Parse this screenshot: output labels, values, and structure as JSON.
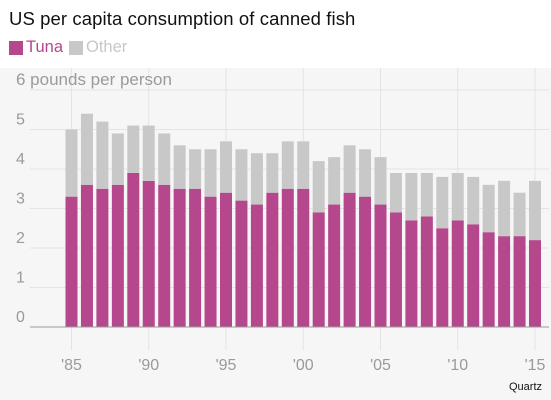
{
  "title": "US per capita consumption of canned fish",
  "source": "Quartz",
  "colors": {
    "tuna": "#b5478c",
    "other": "#c8c8c8",
    "axis_text": "#9a9a9a",
    "grid": "#e4e4e4"
  },
  "chart_data": {
    "type": "bar",
    "stacked": true,
    "title": "US per capita consumption of canned fish",
    "ylabel": "pounds per person",
    "ylim": [
      0,
      6.5
    ],
    "yticks": [
      0,
      1,
      2,
      3,
      4,
      5,
      6
    ],
    "ytick_labels": [
      "0",
      "1",
      "2",
      "3",
      "4",
      "5",
      "6 pounds per person"
    ],
    "xticks": [
      1985,
      1990,
      1995,
      2000,
      2005,
      2010,
      2015
    ],
    "xtick_labels": [
      "'85",
      "'90",
      "'95",
      "'00",
      "'05",
      "'10",
      "'15"
    ],
    "legend": "top-left",
    "grid": true,
    "years": [
      1985,
      1986,
      1987,
      1988,
      1989,
      1990,
      1991,
      1992,
      1993,
      1994,
      1995,
      1996,
      1997,
      1998,
      1999,
      2000,
      2001,
      2002,
      2003,
      2004,
      2005,
      2006,
      2007,
      2008,
      2009,
      2010,
      2011,
      2012,
      2013,
      2014,
      2015
    ],
    "series": [
      {
        "name": "Tuna",
        "values": [
          3.3,
          3.6,
          3.5,
          3.6,
          3.9,
          3.7,
          3.6,
          3.5,
          3.5,
          3.3,
          3.4,
          3.2,
          3.1,
          3.4,
          3.5,
          3.5,
          2.9,
          3.1,
          3.4,
          3.3,
          3.1,
          2.9,
          2.7,
          2.8,
          2.5,
          2.7,
          2.6,
          2.4,
          2.3,
          2.3,
          2.2
        ]
      },
      {
        "name": "Other",
        "values": [
          1.7,
          1.8,
          1.7,
          1.3,
          1.2,
          1.4,
          1.3,
          1.1,
          1.0,
          1.2,
          1.3,
          1.3,
          1.3,
          1.0,
          1.2,
          1.2,
          1.3,
          1.2,
          1.2,
          1.2,
          1.2,
          1.0,
          1.2,
          1.1,
          1.3,
          1.2,
          1.2,
          1.2,
          1.4,
          1.1,
          1.5
        ]
      }
    ]
  }
}
